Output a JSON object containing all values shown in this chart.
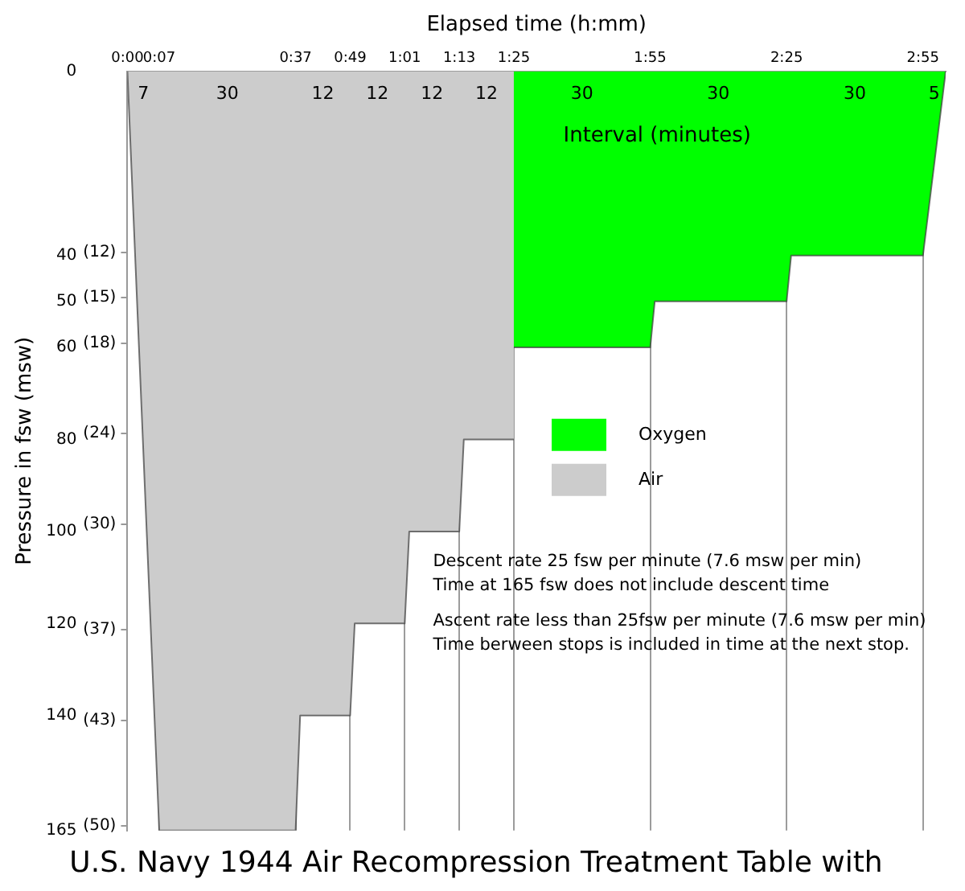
{
  "chart_data": {
    "type": "area",
    "title": "U.S. Navy 1944 Air Recompression Treatment Table with",
    "xlabel": "Elapsed time (h:mm)",
    "ylabel": "Pressure in fsw (msw)",
    "xlim": [
      0,
      180
    ],
    "xticks": [
      {
        "value": 0,
        "label": "0:00"
      },
      {
        "value": 7,
        "label": "0:07"
      },
      {
        "value": 37,
        "label": "0:37"
      },
      {
        "value": 49,
        "label": "0:49"
      },
      {
        "value": 61,
        "label": "1:01"
      },
      {
        "value": 73,
        "label": "1:13"
      },
      {
        "value": 85,
        "label": "1:25"
      },
      {
        "value": 115,
        "label": "1:55"
      },
      {
        "value": 145,
        "label": "2:25"
      },
      {
        "value": 175,
        "label": "2:55"
      }
    ],
    "ylim": [
      165,
      0
    ],
    "yticks": [
      0,
      40,
      50,
      60,
      80,
      100,
      120,
      140,
      165
    ],
    "y2lim": [
      50.3,
      0
    ],
    "y2ticks": [
      {
        "value": 12,
        "label": "(12)"
      },
      {
        "value": 15,
        "label": "(15)"
      },
      {
        "value": 18,
        "label": "(18)"
      },
      {
        "value": 24,
        "label": "(24)"
      },
      {
        "value": 30,
        "label": "(30)"
      },
      {
        "value": 37,
        "label": "(37)"
      },
      {
        "value": 43,
        "label": "(43)"
      },
      {
        "value": 50,
        "label": "(50)"
      }
    ],
    "grid": "x",
    "legend": "right",
    "series": [
      {
        "name": "Oxygen",
        "color": "#00ff00",
        "x": [
          85,
          115,
          116,
          145,
          146,
          175,
          180
        ],
        "values": [
          60,
          60,
          50,
          50,
          40,
          40,
          0
        ]
      },
      {
        "name": "Air",
        "color": "#cccccc",
        "x": [
          0,
          7,
          37,
          38,
          49,
          50,
          61,
          62,
          73,
          74,
          85
        ],
        "values": [
          0,
          165,
          165,
          140,
          140,
          120,
          120,
          100,
          100,
          80,
          80
        ]
      }
    ],
    "annotations": [
      "Interval (minutes)",
      "7",
      "30",
      "12",
      "12",
      "12",
      "12",
      "30",
      "30",
      "30",
      "5",
      "Descent rate 25 fsw per minute (7.6 msw per min)",
      "Time at 165 fsw does not include descent time",
      "Ascent rate less than 25fsw per minute (7.6 msw per min)",
      "Time berween stops is included in time at the next stop."
    ]
  }
}
